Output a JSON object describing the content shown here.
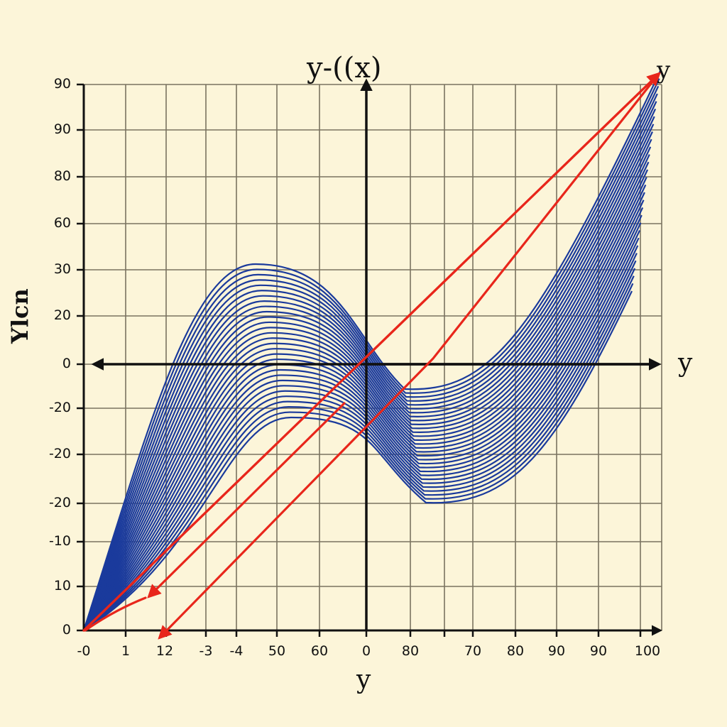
{
  "chart_data": {
    "type": "line",
    "title": "y-((x)",
    "xlabel": "y",
    "ylabel": "Ylcn",
    "x_axis_arrow_label": "y",
    "top_right_label": "y",
    "x_tick_labels": [
      "-0",
      "1",
      "12",
      "-3",
      "-4",
      "50",
      "60",
      "0",
      "80",
      "",
      "70",
      "80",
      "90",
      "90",
      "100"
    ],
    "y_tick_labels": [
      "90",
      "90",
      "80",
      "60",
      "30",
      "20",
      "0",
      "-20",
      "-20",
      "-20",
      "-10",
      "10",
      "0"
    ],
    "grid": true,
    "legend": null,
    "series": [
      {
        "name": "cubic family (blue curves)",
        "color": "#1a3a9c",
        "count": 30,
        "description": "Family of S-shaped cubic curves starting at origin (bottom-left), rising to a local maximum (~30 top curve, ~-20 bottom curve) near x label '50', dipping to a local minimum near x label '70' (~-10 top curve, ~-30 bottom curve), then rising steeply to top-right (~90 at x=100)",
        "top_curve_points": [
          [
            0,
            0
          ],
          [
            12,
            0
          ],
          [
            50,
            30
          ],
          [
            0,
            5
          ],
          [
            70,
            -5
          ],
          [
            90,
            0
          ],
          [
            100,
            90
          ]
        ],
        "bottom_curve_points": [
          [
            0,
            0
          ],
          [
            -3,
            -30
          ],
          [
            50,
            -20
          ],
          [
            0,
            -25
          ],
          [
            70,
            -30
          ],
          [
            90,
            0
          ],
          [
            100,
            60
          ]
        ]
      },
      {
        "name": "red arrows",
        "color": "#e8261b",
        "count": 4,
        "description": "Two red arrows from origin to top-right point (100, 90); two red arrows pointing back down-left toward the x-axis near labels 1 and 12"
      }
    ]
  },
  "labels": {
    "title": "y-((x)",
    "top_right": "y",
    "x_axis_arrow": "y",
    "x_axis_bottom": "y",
    "y_axis_left": "Ylcn"
  },
  "colors": {
    "background": "#fcf5d9",
    "grid": "#7a7360",
    "axes": "#111111",
    "curves": "#1a3a9c",
    "arrows": "#e8261b"
  }
}
